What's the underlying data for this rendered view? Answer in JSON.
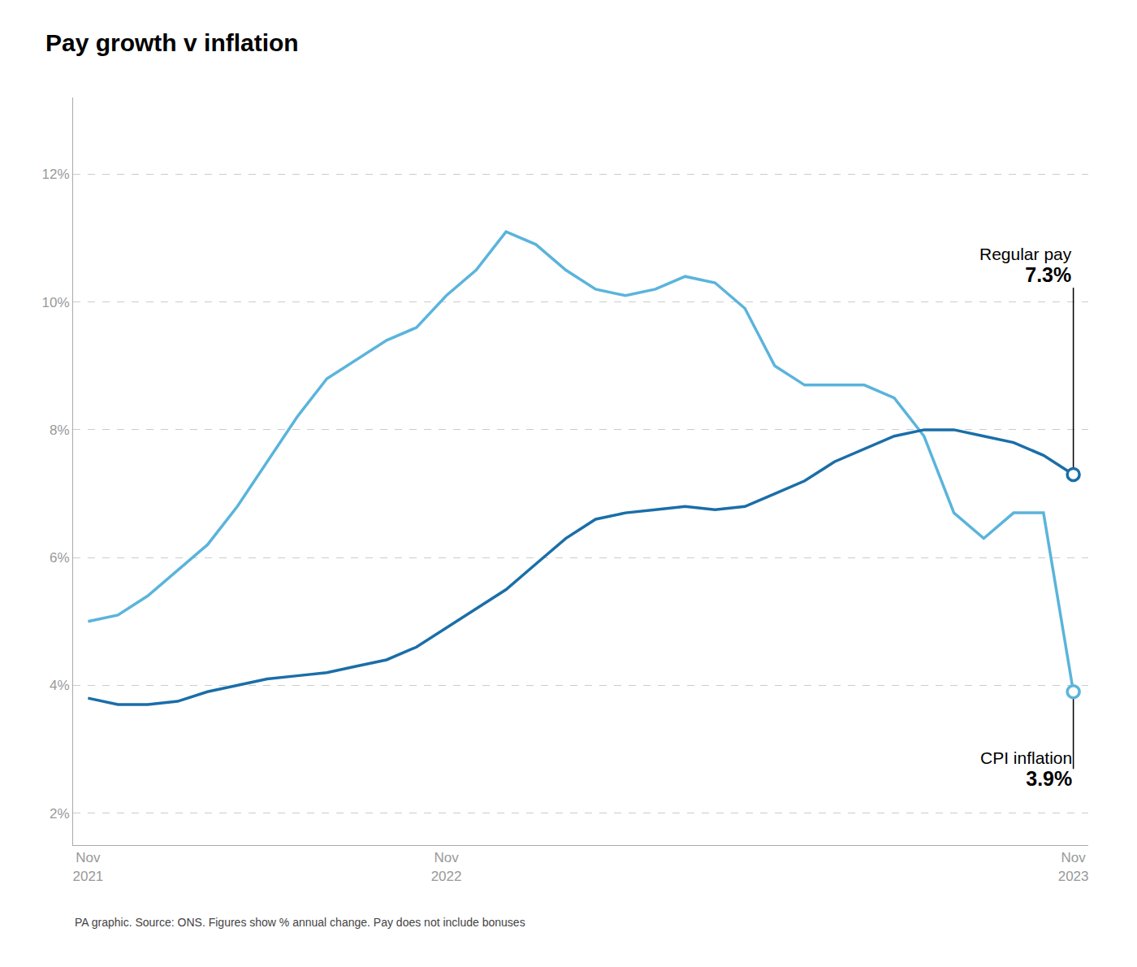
{
  "chart_data": {
    "type": "line",
    "title": "Pay growth v inflation",
    "source": "PA graphic. Source: ONS. Figures show % annual change. Pay does not include bonuses",
    "categories": [
      "Nov\n2021",
      null,
      null,
      null,
      null,
      null,
      null,
      null,
      null,
      null,
      null,
      null,
      "Nov\n2022",
      null,
      null,
      null,
      null,
      null,
      null,
      null,
      null,
      null,
      null,
      null,
      null,
      null,
      null,
      null,
      null,
      null,
      null,
      null,
      null,
      "Nov\n2023"
    ],
    "series": [
      {
        "name": "CPI inflation",
        "color": "#5ab4dc",
        "values": [
          5.0,
          5.1,
          5.4,
          5.8,
          6.2,
          6.8,
          7.5,
          8.2,
          8.8,
          9.1,
          9.4,
          9.6,
          10.1,
          10.5,
          11.1,
          10.9,
          10.5,
          10.2,
          10.1,
          10.2,
          10.4,
          10.3,
          9.9,
          9.0,
          8.7,
          8.7,
          8.7,
          8.5,
          7.9,
          6.7,
          6.3,
          6.7,
          6.7,
          3.9
        ],
        "value_labels": [
          null,
          null,
          null,
          null,
          null,
          null,
          null,
          null,
          null,
          null,
          null,
          null,
          null,
          null,
          null,
          null,
          null,
          null,
          null,
          null,
          null,
          null,
          null,
          null,
          null,
          null,
          null,
          null,
          null,
          null,
          null,
          null,
          null,
          "3.9%"
        ]
      },
      {
        "name": "Regular pay",
        "color": "#1a6ea8",
        "values": [
          3.8,
          3.7,
          3.7,
          3.75,
          3.9,
          4.0,
          4.1,
          4.15,
          4.2,
          4.3,
          4.4,
          4.6,
          4.9,
          5.2,
          5.5,
          5.9,
          6.3,
          6.6,
          6.7,
          6.75,
          6.8,
          6.75,
          6.8,
          7.0,
          7.2,
          7.5,
          7.7,
          7.9,
          8.0,
          8.0,
          7.9,
          7.8,
          7.6,
          7.3
        ],
        "value_labels": [
          null,
          null,
          null,
          null,
          null,
          null,
          null,
          null,
          null,
          null,
          null,
          null,
          null,
          null,
          null,
          null,
          null,
          null,
          null,
          null,
          null,
          null,
          null,
          null,
          null,
          null,
          null,
          null,
          null,
          null,
          null,
          null,
          null,
          "7.3%"
        ]
      }
    ],
    "ylim": [
      1.5,
      13.2
    ],
    "yticks": [
      {
        "value": 2,
        "label": "2%"
      },
      {
        "value": 4,
        "label": "4%"
      },
      {
        "value": 6,
        "label": "6%"
      },
      {
        "value": 8,
        "label": "8%"
      },
      {
        "value": 10,
        "label": "10%"
      },
      {
        "value": 12,
        "label": "12%"
      }
    ],
    "grid": true
  }
}
